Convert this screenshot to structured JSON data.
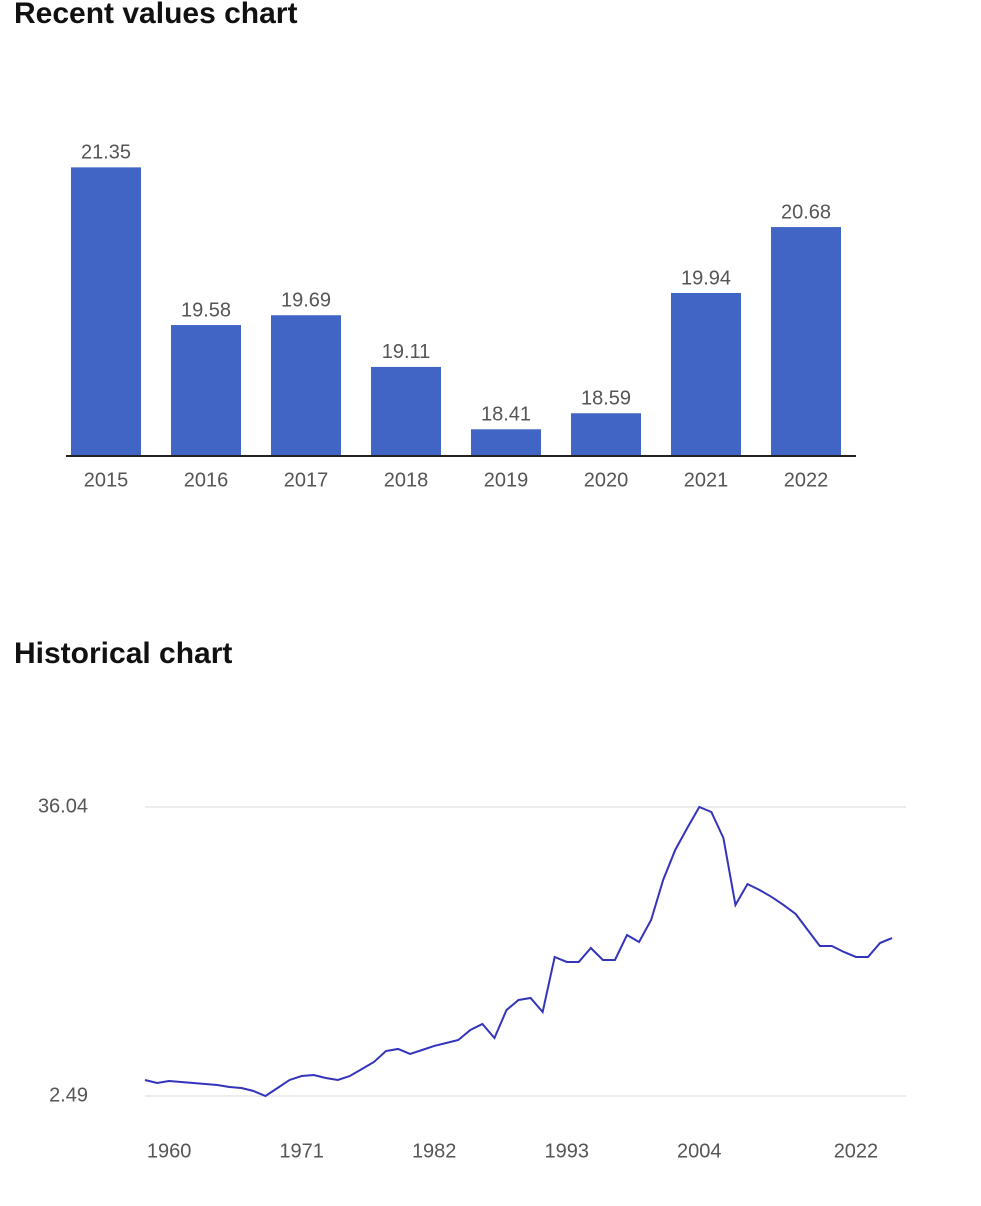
{
  "chart_data": [
    {
      "type": "bar",
      "title": "Recent values chart",
      "categories": [
        "2015",
        "2016",
        "2017",
        "2018",
        "2019",
        "2020",
        "2021",
        "2022"
      ],
      "values": [
        21.35,
        19.58,
        19.69,
        19.11,
        18.41,
        18.59,
        19.94,
        20.68
      ],
      "color": "#4065c4",
      "ylim": [
        18.11,
        21.5
      ]
    },
    {
      "type": "line",
      "title": "Historical chart",
      "categories": [
        null,
        null,
        "1960",
        null,
        null,
        null,
        null,
        null,
        null,
        null,
        null,
        null,
        null,
        "1971",
        null,
        null,
        null,
        null,
        null,
        null,
        null,
        null,
        null,
        null,
        "1982",
        null,
        null,
        null,
        null,
        null,
        null,
        null,
        null,
        null,
        null,
        "1993",
        null,
        null,
        null,
        null,
        null,
        null,
        null,
        null,
        null,
        null,
        "2004",
        null,
        null,
        null,
        null,
        null,
        null,
        null,
        null,
        null,
        null,
        null,
        null,
        "2022",
        null,
        null,
        null
      ],
      "values": [
        4.35,
        4.0,
        4.23,
        4.12,
        4.0,
        3.88,
        3.77,
        3.53,
        3.42,
        3.07,
        2.49,
        3.42,
        4.35,
        4.81,
        4.93,
        4.58,
        4.35,
        4.81,
        5.62,
        6.44,
        7.71,
        7.95,
        7.37,
        7.83,
        8.3,
        8.64,
        8.99,
        10.15,
        10.85,
        9.22,
        12.47,
        13.64,
        13.87,
        12.24,
        18.63,
        18.05,
        18.05,
        19.67,
        18.28,
        18.28,
        21.18,
        20.37,
        22.92,
        27.57,
        31.05,
        33.6,
        36.04,
        35.46,
        32.44,
        24.66,
        27.1,
        26.41,
        25.6,
        24.66,
        23.62,
        21.76,
        19.9,
        19.9,
        19.21,
        18.63,
        18.63,
        20.25,
        20.83
      ],
      "color": "#3333bb",
      "ylim": [
        2.49,
        36.04
      ],
      "yticks": [
        2.49,
        36.04
      ],
      "grid": true
    }
  ]
}
